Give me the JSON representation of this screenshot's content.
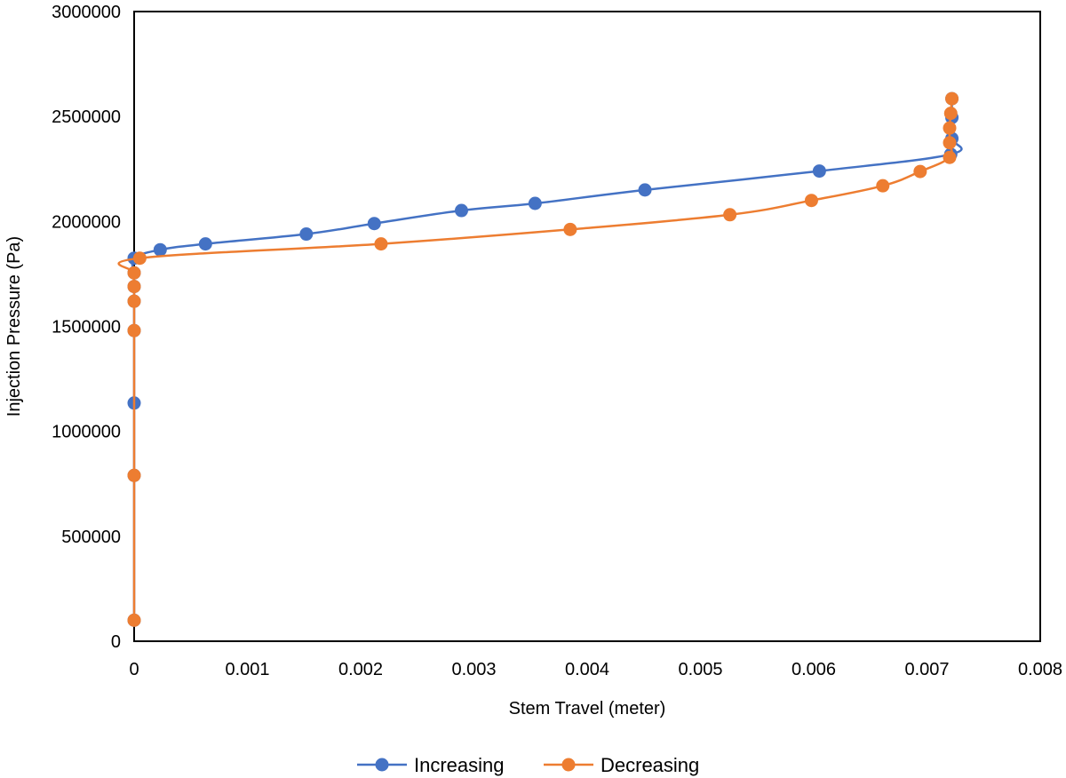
{
  "chart_data": {
    "type": "scatter",
    "title": "",
    "xlabel": "Stem Travel (meter)",
    "ylabel": "Injection Pressure (Pa)",
    "xlim": [
      0,
      0.008
    ],
    "ylim": [
      0,
      3000000
    ],
    "x_ticks": [
      0,
      0.001,
      0.002,
      0.003,
      0.004,
      0.005,
      0.006,
      0.007,
      0.008
    ],
    "x_tick_labels": [
      "0",
      "0.001",
      "0.002",
      "0.003",
      "0.004",
      "0.005",
      "0.006",
      "0.007",
      "0.008"
    ],
    "y_ticks": [
      0,
      500000,
      1000000,
      1500000,
      2000000,
      2500000,
      3000000
    ],
    "y_tick_labels": [
      "0",
      "500000",
      "1000000",
      "1500000",
      "2000000",
      "2500000",
      "3000000"
    ],
    "grid": false,
    "legend_position": "bottom",
    "series": [
      {
        "name": "Increasing",
        "color": "#4472C4",
        "points": [
          [
            0,
            100000
          ],
          [
            0,
            790000
          ],
          [
            0,
            1135000
          ],
          [
            0,
            1480000
          ],
          [
            0,
            1620000
          ],
          [
            0,
            1690000
          ],
          [
            0,
            1755000
          ],
          [
            0,
            1825000
          ],
          [
            0.00023,
            1865000
          ],
          [
            0.00063,
            1893000
          ],
          [
            0.00152,
            1940000
          ],
          [
            0.00212,
            1990000
          ],
          [
            0.00289,
            2052000
          ],
          [
            0.00354,
            2086000
          ],
          [
            0.00451,
            2150000
          ],
          [
            0.00605,
            2240000
          ],
          [
            0.00721,
            2320000
          ],
          [
            0.00722,
            2395000
          ],
          [
            0.00722,
            2495000
          ],
          [
            0.00722,
            2585000
          ]
        ]
      },
      {
        "name": "Decreasing",
        "color": "#ED7D31",
        "points": [
          [
            0.00722,
            2585000
          ],
          [
            0.00721,
            2515000
          ],
          [
            0.0072,
            2445000
          ],
          [
            0.0072,
            2375000
          ],
          [
            0.0072,
            2305000
          ],
          [
            0.00694,
            2238000
          ],
          [
            0.00661,
            2170000
          ],
          [
            0.00598,
            2100000
          ],
          [
            0.00526,
            2032000
          ],
          [
            0.00385,
            1962000
          ],
          [
            0.00218,
            1893000
          ],
          [
            5e-05,
            1825000
          ],
          [
            0,
            1755000
          ],
          [
            0,
            1690000
          ],
          [
            0,
            1620000
          ],
          [
            0,
            1480000
          ],
          [
            0,
            790000
          ],
          [
            0,
            100000
          ]
        ]
      }
    ]
  }
}
